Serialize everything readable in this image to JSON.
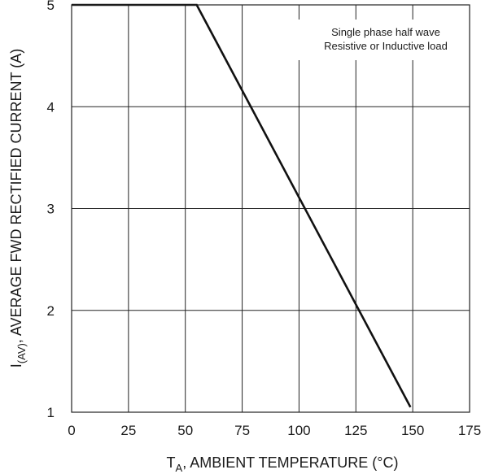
{
  "chart_data": {
    "type": "line",
    "title": "",
    "xlabel": {
      "main": "T",
      "sub": "A",
      "rest": ", AMBIENT TEMPERATURE (°C)"
    },
    "ylabel": {
      "main": "I",
      "sub": "(AV)",
      "rest": ", AVERAGE FWD RECTIFIED CURRENT (A)"
    },
    "xlim": [
      0,
      175
    ],
    "ylim": [
      1,
      5
    ],
    "xticks": [
      0,
      25,
      50,
      75,
      100,
      125,
      150,
      175
    ],
    "yticks": [
      1,
      2,
      3,
      4,
      5
    ],
    "grid": true,
    "annotation": [
      "Single phase half wave",
      "Resistive or Inductive load"
    ],
    "series": [
      {
        "x": [
          0,
          55,
          149
        ],
        "y": [
          5,
          5,
          1.05
        ]
      }
    ]
  }
}
